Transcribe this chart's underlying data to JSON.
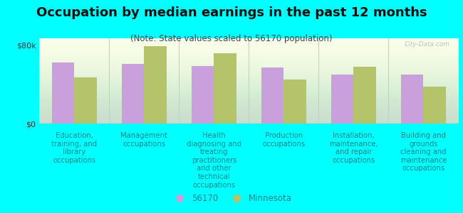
{
  "title": "Occupation by median earnings in the past 12 months",
  "subtitle": "(Note: State values scaled to 56170 population)",
  "categories": [
    "Education,\ntraining, and\nlibrary\noccupations",
    "Management\noccupations",
    "Health\ndiagnosing and\ntreating\npractitioners\nand other\ntechnical\noccupations",
    "Production\noccupations",
    "Installation,\nmaintenance,\nand repair\noccupations",
    "Building and\ngrounds\ncleaning and\nmaintenance\noccupations"
  ],
  "values_56170": [
    62000,
    61000,
    59000,
    57000,
    50000,
    50000
  ],
  "values_mn": [
    47000,
    79000,
    72000,
    45000,
    58000,
    38000
  ],
  "color_56170": "#c9a0dc",
  "color_mn": "#b5c46a",
  "ylim": [
    0,
    87000
  ],
  "yticks": [
    0,
    80000
  ],
  "ytick_labels": [
    "$0",
    "$80k"
  ],
  "background_color": "#00ffff",
  "plot_bg_top": "#e8f0c0",
  "plot_bg_bottom": "#f8fdf0",
  "watermark": "City-Data.com",
  "legend_label_56170": "56170",
  "legend_label_mn": "Minnesota",
  "title_fontsize": 13,
  "subtitle_fontsize": 8.5,
  "label_fontsize": 7.2,
  "ytick_fontsize": 8
}
